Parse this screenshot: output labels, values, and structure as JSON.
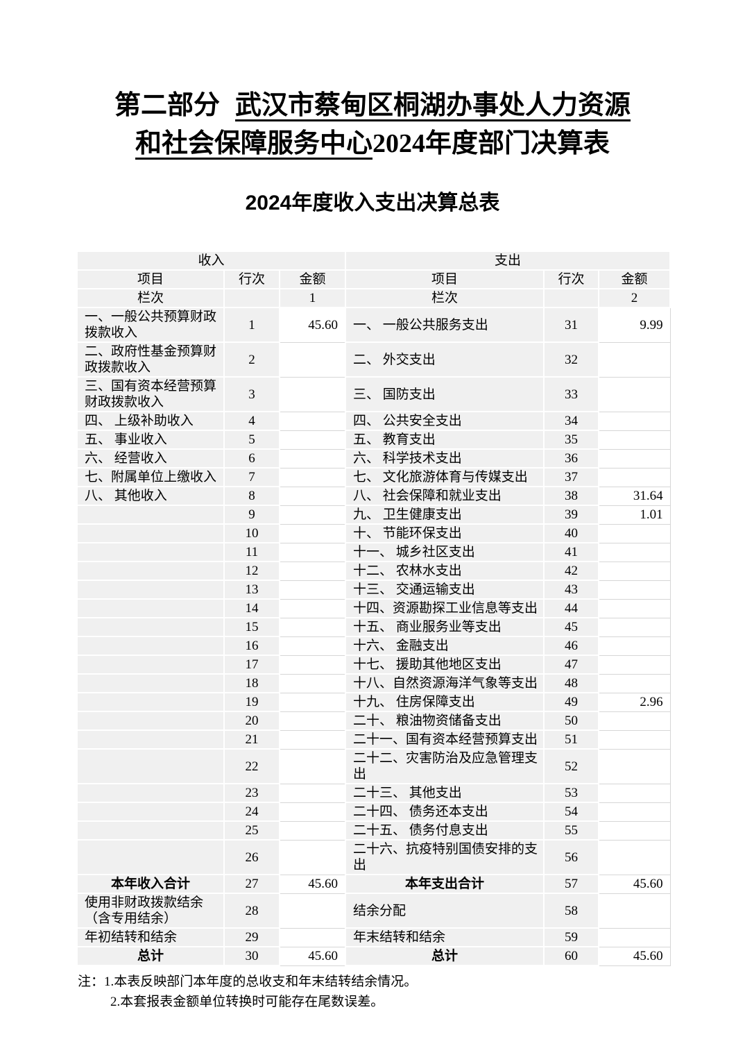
{
  "page": {
    "part_title_prefix": "第二部分",
    "part_title_org": "武汉市蔡甸区桐湖办事处人力资源和社会保障服务中心",
    "part_title_suffix": "2024年度部门决算表",
    "table_title": "2024年度收入支出决算总表"
  },
  "table": {
    "income_section_label": "收入",
    "expense_section_label": "支出",
    "col_headers": {
      "item": "项目",
      "line": "行次",
      "amount": "金额"
    },
    "col_index_label": "栏次",
    "income_amount_col_index": "1",
    "expense_amount_col_index": "2",
    "rows": [
      {
        "income_item": "一、一般公共预算财政\n拨款收入",
        "income_line": "1",
        "income_amount": "45.60",
        "expense_item": "一、 一般公共服务支出",
        "expense_line": "31",
        "expense_amount": "9.99",
        "is_total": false
      },
      {
        "income_item": "二、政府性基金预算财\n政拨款收入",
        "income_line": "2",
        "income_amount": "",
        "expense_item": "二、 外交支出",
        "expense_line": "32",
        "expense_amount": "",
        "is_total": false
      },
      {
        "income_item": "三、国有资本经营预算\n财政拨款收入",
        "income_line": "3",
        "income_amount": "",
        "expense_item": "三、 国防支出",
        "expense_line": "33",
        "expense_amount": "",
        "is_total": false
      },
      {
        "income_item": "四、 上级补助收入",
        "income_line": "4",
        "income_amount": "",
        "expense_item": "四、 公共安全支出",
        "expense_line": "34",
        "expense_amount": "",
        "is_total": false
      },
      {
        "income_item": "五、 事业收入",
        "income_line": "5",
        "income_amount": "",
        "expense_item": "五、 教育支出",
        "expense_line": "35",
        "expense_amount": "",
        "is_total": false
      },
      {
        "income_item": "六、 经营收入",
        "income_line": "6",
        "income_amount": "",
        "expense_item": "六、 科学技术支出",
        "expense_line": "36",
        "expense_amount": "",
        "is_total": false
      },
      {
        "income_item": "七、附属单位上缴收入",
        "income_line": "7",
        "income_amount": "",
        "expense_item": "七、 文化旅游体育与传媒支出",
        "expense_line": "37",
        "expense_amount": "",
        "is_total": false
      },
      {
        "income_item": "八、 其他收入",
        "income_line": "8",
        "income_amount": "",
        "expense_item": "八、 社会保障和就业支出",
        "expense_line": "38",
        "expense_amount": "31.64",
        "is_total": false
      },
      {
        "income_item": "",
        "income_line": "9",
        "income_amount": "",
        "expense_item": "九、 卫生健康支出",
        "expense_line": "39",
        "expense_amount": "1.01",
        "is_total": false
      },
      {
        "income_item": "",
        "income_line": "10",
        "income_amount": "",
        "expense_item": "十、 节能环保支出",
        "expense_line": "40",
        "expense_amount": "",
        "is_total": false
      },
      {
        "income_item": "",
        "income_line": "11",
        "income_amount": "",
        "expense_item": "十一、 城乡社区支出",
        "expense_line": "41",
        "expense_amount": "",
        "is_total": false
      },
      {
        "income_item": "",
        "income_line": "12",
        "income_amount": "",
        "expense_item": "十二、 农林水支出",
        "expense_line": "42",
        "expense_amount": "",
        "is_total": false
      },
      {
        "income_item": "",
        "income_line": "13",
        "income_amount": "",
        "expense_item": "十三、 交通运输支出",
        "expense_line": "43",
        "expense_amount": "",
        "is_total": false
      },
      {
        "income_item": "",
        "income_line": "14",
        "income_amount": "",
        "expense_item": "十四、资源勘探工业信息等支出",
        "expense_line": "44",
        "expense_amount": "",
        "is_total": false
      },
      {
        "income_item": "",
        "income_line": "15",
        "income_amount": "",
        "expense_item": "十五、 商业服务业等支出",
        "expense_line": "45",
        "expense_amount": "",
        "is_total": false
      },
      {
        "income_item": "",
        "income_line": "16",
        "income_amount": "",
        "expense_item": "十六、 金融支出",
        "expense_line": "46",
        "expense_amount": "",
        "is_total": false
      },
      {
        "income_item": "",
        "income_line": "17",
        "income_amount": "",
        "expense_item": "十七、 援助其他地区支出",
        "expense_line": "47",
        "expense_amount": "",
        "is_total": false
      },
      {
        "income_item": "",
        "income_line": "18",
        "income_amount": "",
        "expense_item": "十八、自然资源海洋气象等支出",
        "expense_line": "48",
        "expense_amount": "",
        "is_total": false
      },
      {
        "income_item": "",
        "income_line": "19",
        "income_amount": "",
        "expense_item": "十九、 住房保障支出",
        "expense_line": "49",
        "expense_amount": "2.96",
        "is_total": false
      },
      {
        "income_item": "",
        "income_line": "20",
        "income_amount": "",
        "expense_item": "二十、 粮油物资储备支出",
        "expense_line": "50",
        "expense_amount": "",
        "is_total": false
      },
      {
        "income_item": "",
        "income_line": "21",
        "income_amount": "",
        "expense_item": "二十一、国有资本经营预算支出",
        "expense_line": "51",
        "expense_amount": "",
        "is_total": false
      },
      {
        "income_item": "",
        "income_line": "22",
        "income_amount": "",
        "expense_item": "二十二、灾害防治及应急管理支\n出",
        "expense_line": "52",
        "expense_amount": "",
        "is_total": false
      },
      {
        "income_item": "",
        "income_line": "23",
        "income_amount": "",
        "expense_item": "二十三、 其他支出",
        "expense_line": "53",
        "expense_amount": "",
        "is_total": false
      },
      {
        "income_item": "",
        "income_line": "24",
        "income_amount": "",
        "expense_item": "二十四、 债务还本支出",
        "expense_line": "54",
        "expense_amount": "",
        "is_total": false
      },
      {
        "income_item": "",
        "income_line": "25",
        "income_amount": "",
        "expense_item": "二十五、 债务付息支出",
        "expense_line": "55",
        "expense_amount": "",
        "is_total": false
      },
      {
        "income_item": "",
        "income_line": "26",
        "income_amount": "",
        "expense_item": "二十六、抗疫特别国债安排的支\n出",
        "expense_line": "56",
        "expense_amount": "",
        "is_total": false
      },
      {
        "income_item": "本年收入合计",
        "income_line": "27",
        "income_amount": "45.60",
        "expense_item": "本年支出合计",
        "expense_line": "57",
        "expense_amount": "45.60",
        "is_total": true
      },
      {
        "income_item": "使用非财政拨款结余\n（含专用结余）",
        "income_line": "28",
        "income_amount": "",
        "expense_item": "结余分配",
        "expense_line": "58",
        "expense_amount": "",
        "is_total": false
      },
      {
        "income_item": "年初结转和结余",
        "income_line": "29",
        "income_amount": "",
        "expense_item": "年末结转和结余",
        "expense_line": "59",
        "expense_amount": "",
        "is_total": false
      },
      {
        "income_item": "总计",
        "income_line": "30",
        "income_amount": "45.60",
        "expense_item": "总计",
        "expense_line": "60",
        "expense_amount": "45.60",
        "is_total": true
      }
    ]
  },
  "notes": {
    "line1": "注：1.本表反映部门本年度的总收支和年末结转结余情况。",
    "line2": "2.本套报表金额单位转换时可能存在尾数误差。"
  },
  "colors": {
    "cell_gray": "#f0f0f0",
    "grid_line": "#d6d6d6",
    "text": "#000000"
  }
}
